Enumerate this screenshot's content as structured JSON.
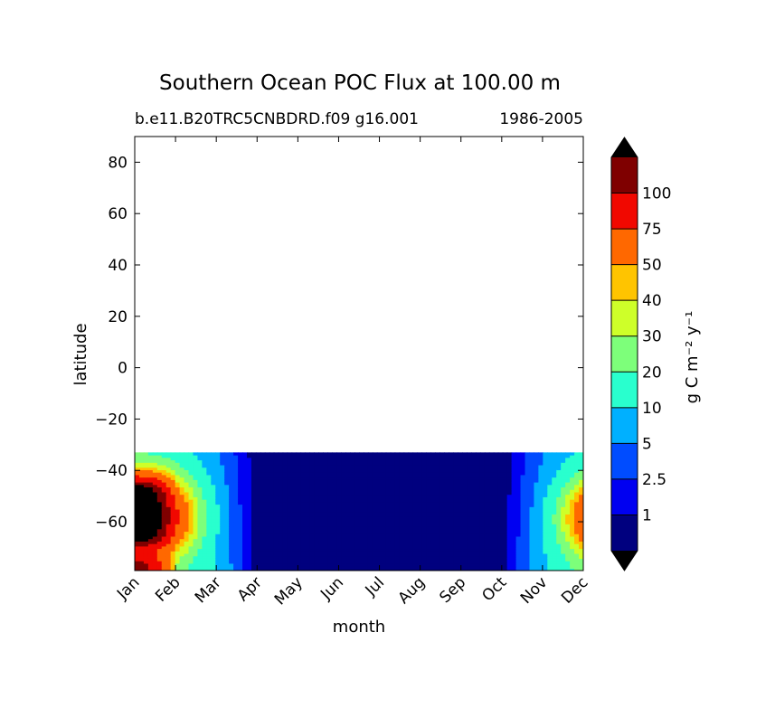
{
  "chart_data": {
    "type": "contourf",
    "title": "Southern Ocean POC Flux at 100.00 m",
    "subtitle_left": "b.e11.B20TRC5CNBDRD.f09 g16.001",
    "subtitle_right": "1986-2005",
    "xlabel": "month",
    "ylabel": "latitude",
    "x_ticks": [
      "Jan",
      "Feb",
      "Mar",
      "Apr",
      "May",
      "Jun",
      "Jul",
      "Aug",
      "Sep",
      "Oct",
      "Nov",
      "Dec"
    ],
    "xlim": [
      0,
      11
    ],
    "ylim": [
      -79,
      90
    ],
    "y_ticks": [
      80,
      60,
      40,
      20,
      0,
      -20,
      -40,
      -60
    ],
    "y_tick_labels": [
      "80",
      "60",
      "40",
      "20",
      "0",
      "−20",
      "−40",
      "−60"
    ],
    "data_lat_max": -33,
    "colorbar": {
      "label": "g C m⁻² y⁻¹",
      "levels": [
        0,
        1,
        2.5,
        5,
        10,
        20,
        30,
        40,
        50,
        75,
        100,
        120
      ],
      "tick_labels": [
        "1",
        "2.5",
        "5",
        "10",
        "20",
        "30",
        "40",
        "50",
        "75",
        "100"
      ],
      "colors": [
        "#00007f",
        "#0000f1",
        "#004cff",
        "#00b0ff",
        "#29ffce",
        "#7dff7a",
        "#ceff29",
        "#ffc400",
        "#ff6800",
        "#f10800",
        "#7f0000"
      ],
      "under_color": "#000000",
      "over_color": "#000000"
    }
  }
}
